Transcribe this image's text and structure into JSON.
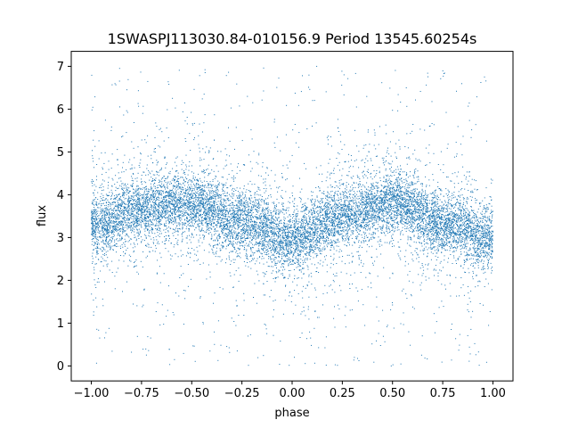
{
  "chart_data": {
    "type": "scatter",
    "title": "1SWASPJ113030.84-010156.9 Period 13545.60254s",
    "xlabel": "phase",
    "ylabel": "flux",
    "xlim": [
      -1.1,
      1.1
    ],
    "ylim": [
      -0.35,
      7.35
    ],
    "x_ticks": [
      -1.0,
      -0.75,
      -0.5,
      -0.25,
      0.0,
      0.25,
      0.5,
      0.75,
      1.0
    ],
    "x_tick_labels": [
      "−1.00",
      "−0.75",
      "−0.50",
      "−0.25",
      "0.00",
      "0.25",
      "0.50",
      "0.75",
      "1.00"
    ],
    "y_ticks": [
      0,
      1,
      2,
      3,
      4,
      5,
      6,
      7
    ],
    "y_tick_labels": [
      "0",
      "1",
      "2",
      "3",
      "4",
      "5",
      "6",
      "7"
    ],
    "grid": false,
    "legend": "none",
    "marker_color": "#1f77b4",
    "series": [
      {
        "phase_range": [
          -1.0,
          1.0
        ],
        "trend": {
          "phase": [
            -1.0,
            -0.75,
            -0.5,
            -0.25,
            0.0,
            0.25,
            0.5,
            0.75,
            1.0
          ],
          "flux": [
            3.25,
            3.65,
            3.8,
            3.35,
            2.95,
            3.5,
            3.8,
            3.35,
            3.0
          ]
        },
        "core_spread": 0.35,
        "outlier_flux_range": [
          0.0,
          7.0
        ]
      }
    ]
  }
}
